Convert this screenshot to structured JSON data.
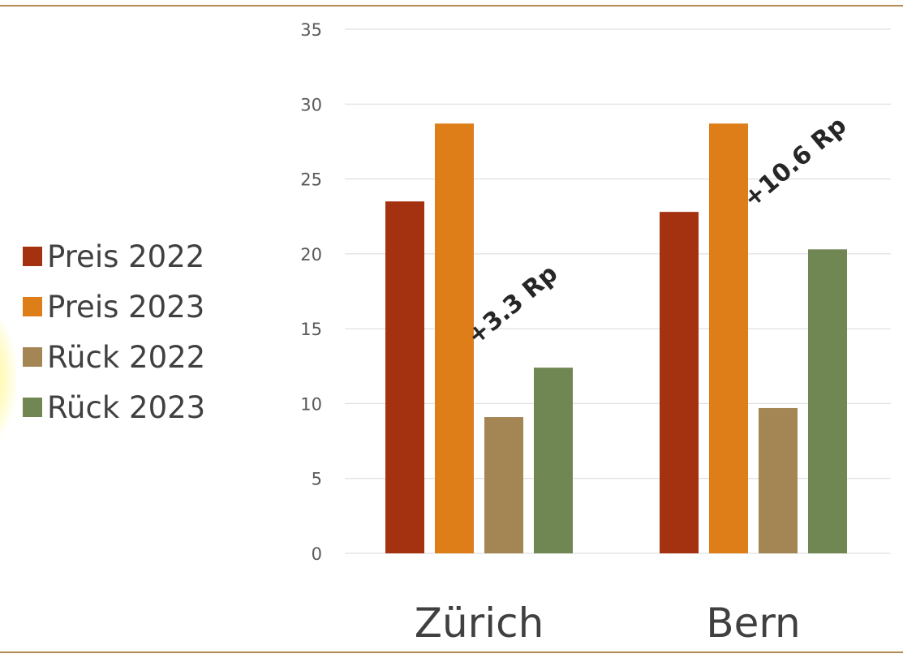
{
  "chart_data": {
    "type": "bar",
    "categories": [
      "Zürich",
      "Bern"
    ],
    "series": [
      {
        "name": "Preis 2022",
        "color": "#A4310F",
        "values": [
          23.5,
          22.8
        ]
      },
      {
        "name": "Preis 2023",
        "color": "#DE7E19",
        "values": [
          28.7,
          28.7
        ]
      },
      {
        "name": "Rück 2022",
        "color": "#A38653",
        "values": [
          9.1,
          9.7
        ]
      },
      {
        "name": "Rück 2023",
        "color": "#708753",
        "values": [
          12.4,
          20.3
        ]
      }
    ],
    "ylim": [
      0,
      35
    ],
    "yticks": [
      0,
      5,
      10,
      15,
      20,
      25,
      30,
      35
    ],
    "grid": true,
    "legend_position": "left",
    "annotations": [
      "+3.3 Rp",
      "+10.6 Rp"
    ]
  }
}
